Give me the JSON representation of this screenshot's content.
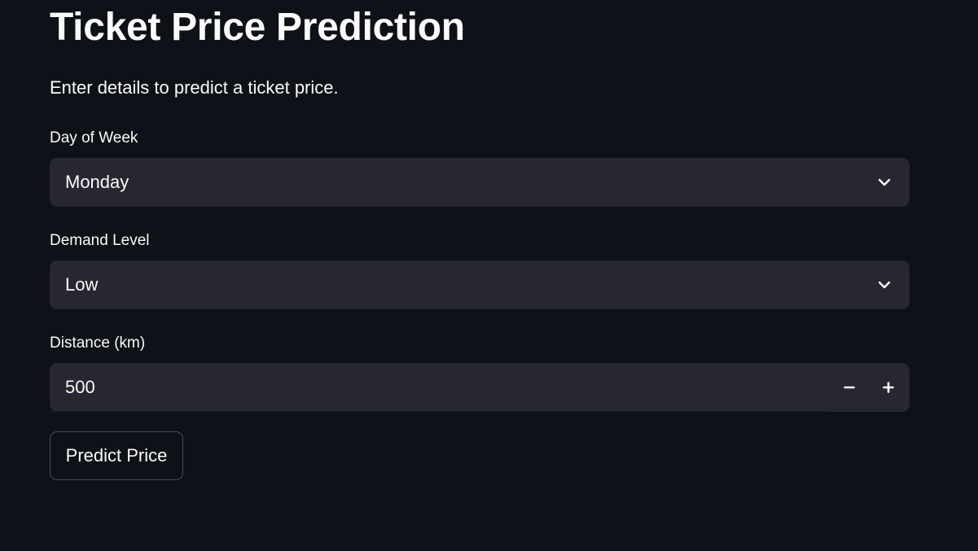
{
  "header": {
    "title": "Ticket Price Prediction",
    "subtitle": "Enter details to predict a ticket price."
  },
  "form": {
    "day_of_week": {
      "label": "Day of Week",
      "selected": "Monday",
      "icon": "chevron-down-icon"
    },
    "demand_level": {
      "label": "Demand Level",
      "selected": "Low",
      "icon": "chevron-down-icon"
    },
    "distance": {
      "label": "Distance (km)",
      "value": "500",
      "decrement_icon": "minus-icon",
      "increment_icon": "plus-icon"
    },
    "submit_label": "Predict Price"
  },
  "colors": {
    "background": "#0e1117",
    "input_background": "#262730",
    "text": "#fafafa",
    "button_border": "#4a4d57"
  }
}
